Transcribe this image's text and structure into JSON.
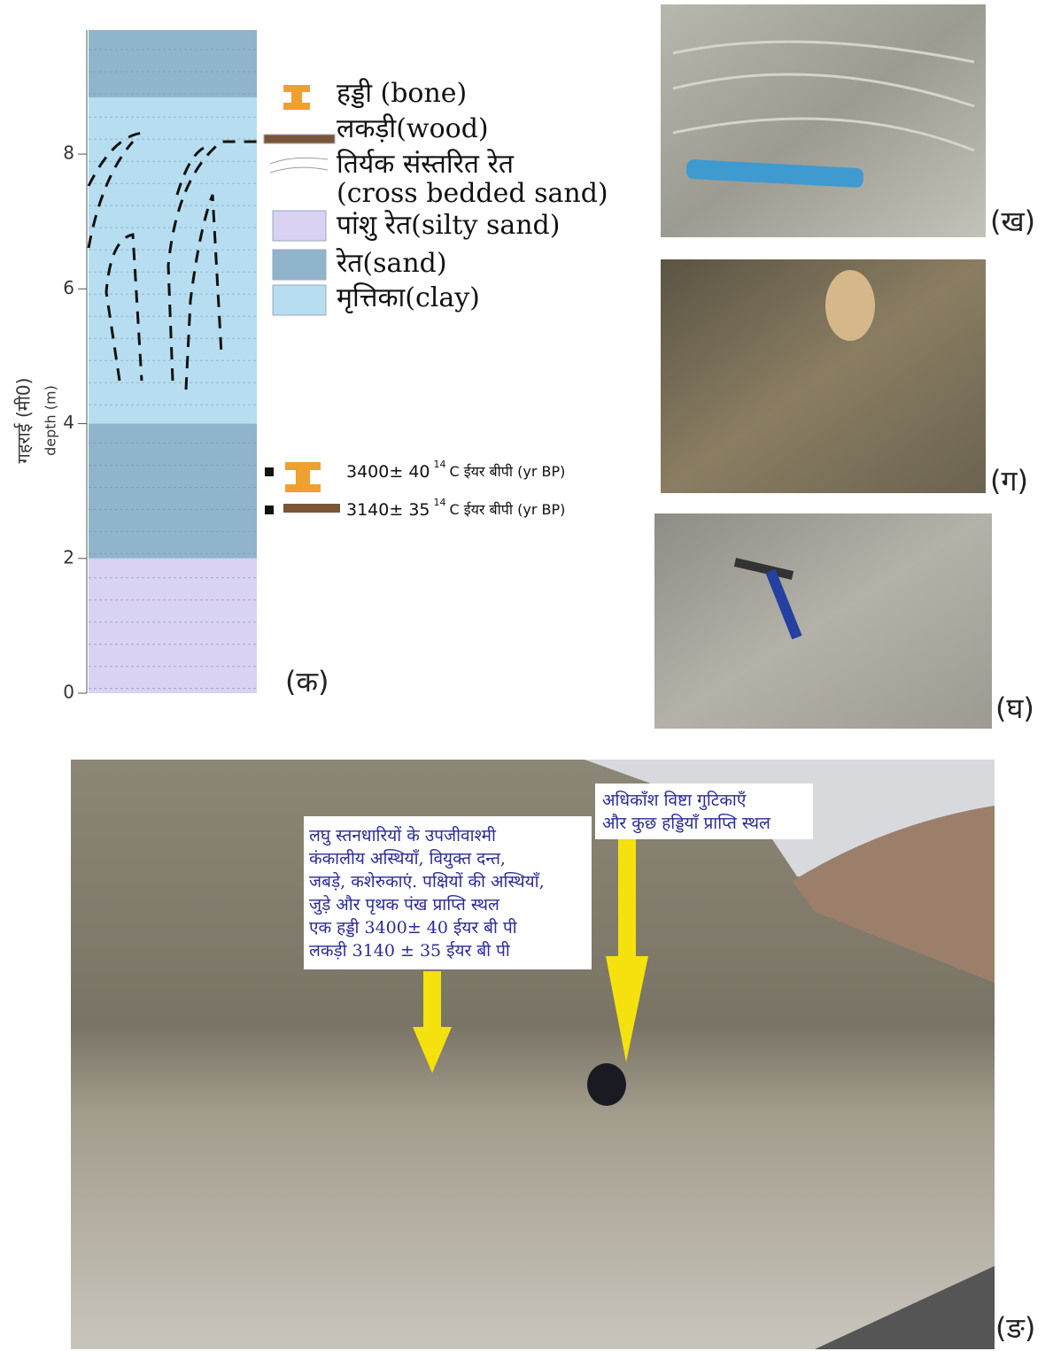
{
  "column": {
    "axis_title": "गहराई (मी0)",
    "axis_title_en": "depth (m)",
    "panel_label": "(क)",
    "ylim": [
      0,
      9.84
    ],
    "yticks": [
      0,
      2,
      4,
      6,
      8
    ],
    "layers": [
      {
        "bottom": 0,
        "top": 2,
        "color": "#d9d2f2"
      },
      {
        "bottom": 2,
        "top": 4,
        "color": "#90b4cc"
      },
      {
        "bottom": 4,
        "top": 8.84,
        "color": "#b6def0"
      },
      {
        "bottom": 8.84,
        "top": 9.84,
        "color": "#90b4cc"
      }
    ],
    "legend": [
      "हड्डी (bone)",
      "लकड़ी(wood)",
      "तिर्यक संस्तरित रेत",
      "(cross bedded sand)",
      "पांशु रेत(silty sand)",
      "रेत(sand)",
      "मृत्तिका(clay)"
    ],
    "dates": [
      {
        "value": "3400± 40",
        "sup": "14",
        "unit": "C ईयर बीपी (yr BP)"
      },
      {
        "value": "3140± 35",
        "sup": "14",
        "unit": "C ईयर बीपी (yr BP)"
      }
    ]
  },
  "photos": [
    "(ख)",
    "(ग)",
    "(घ)",
    "(ङ)"
  ],
  "annotations": [
    [
      "लघु स्तनधारियों के उपजीवाश्मी",
      "कंकालीय अस्थियाँ, वियुक्त दन्त,",
      "जबड़े, कशेरुकाएं. पक्षियों की अस्थियाँ,",
      "जुड़े और पृथक पंख प्राप्ति स्थल",
      "एक हड्डी 3400± 40 ईयर बी पी",
      "लकड़ी 3140 ± 35 ईयर बी पी"
    ],
    [
      "अधिकाँश विष्टा गुटिकाएँ",
      "और कुछ हड्डियाँ प्राप्ति स्थल"
    ]
  ]
}
